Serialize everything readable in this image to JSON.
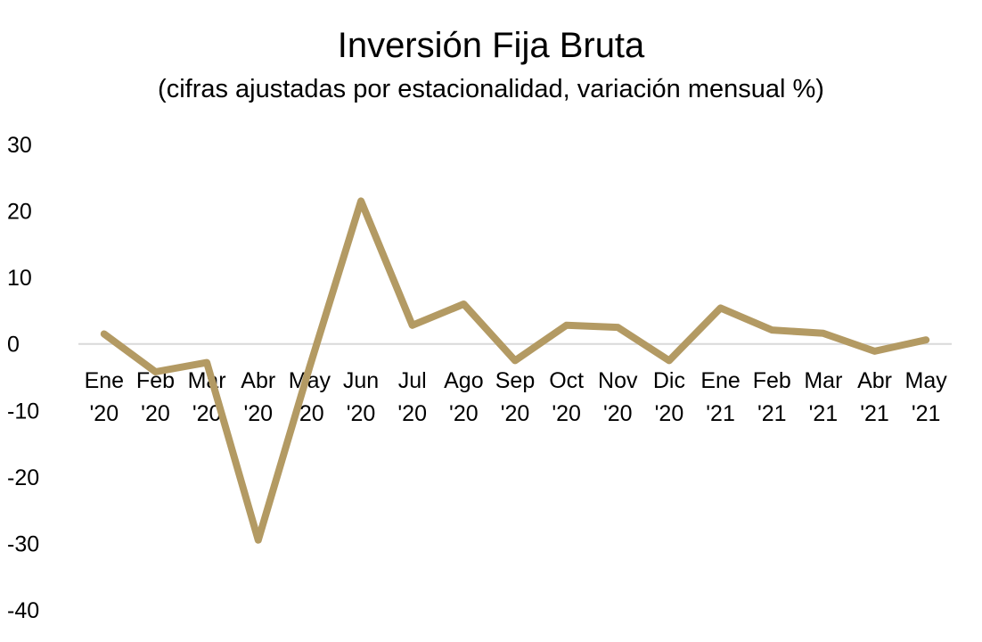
{
  "chart_data": {
    "type": "line",
    "title": "Inversión Fija Bruta",
    "subtitle": "(cifras ajustadas por estacionalidad, variación mensual %)",
    "xlabel": "",
    "ylabel": "",
    "ylim": [
      -40,
      30
    ],
    "yticks": [
      "30",
      "20",
      "10",
      "0",
      "-10",
      "-20",
      "-30",
      "-40"
    ],
    "grid": false,
    "categories": [
      [
        "Ene",
        "'20"
      ],
      [
        "Feb",
        "'20"
      ],
      [
        "Mar",
        "'20"
      ],
      [
        "Abr",
        "'20"
      ],
      [
        "May",
        "'20"
      ],
      [
        "Jun",
        "'20"
      ],
      [
        "Jul",
        "'20"
      ],
      [
        "Ago",
        "'20"
      ],
      [
        "Sep",
        "'20"
      ],
      [
        "Oct",
        "'20"
      ],
      [
        "Nov",
        "'20"
      ],
      [
        "Dic",
        "'20"
      ],
      [
        "Ene",
        "'21"
      ],
      [
        "Feb",
        "'21"
      ],
      [
        "Mar",
        "'21"
      ],
      [
        "Abr",
        "'21"
      ],
      [
        "May",
        "'21"
      ]
    ],
    "series": [
      {
        "color": "#b39a63",
        "values": [
          1.5,
          -4.2,
          -2.8,
          -29.5,
          -3.5,
          21.5,
          2.8,
          6.0,
          -2.5,
          2.8,
          2.5,
          -2.5,
          5.4,
          2.1,
          1.6,
          -1.1,
          0.6
        ]
      }
    ]
  }
}
